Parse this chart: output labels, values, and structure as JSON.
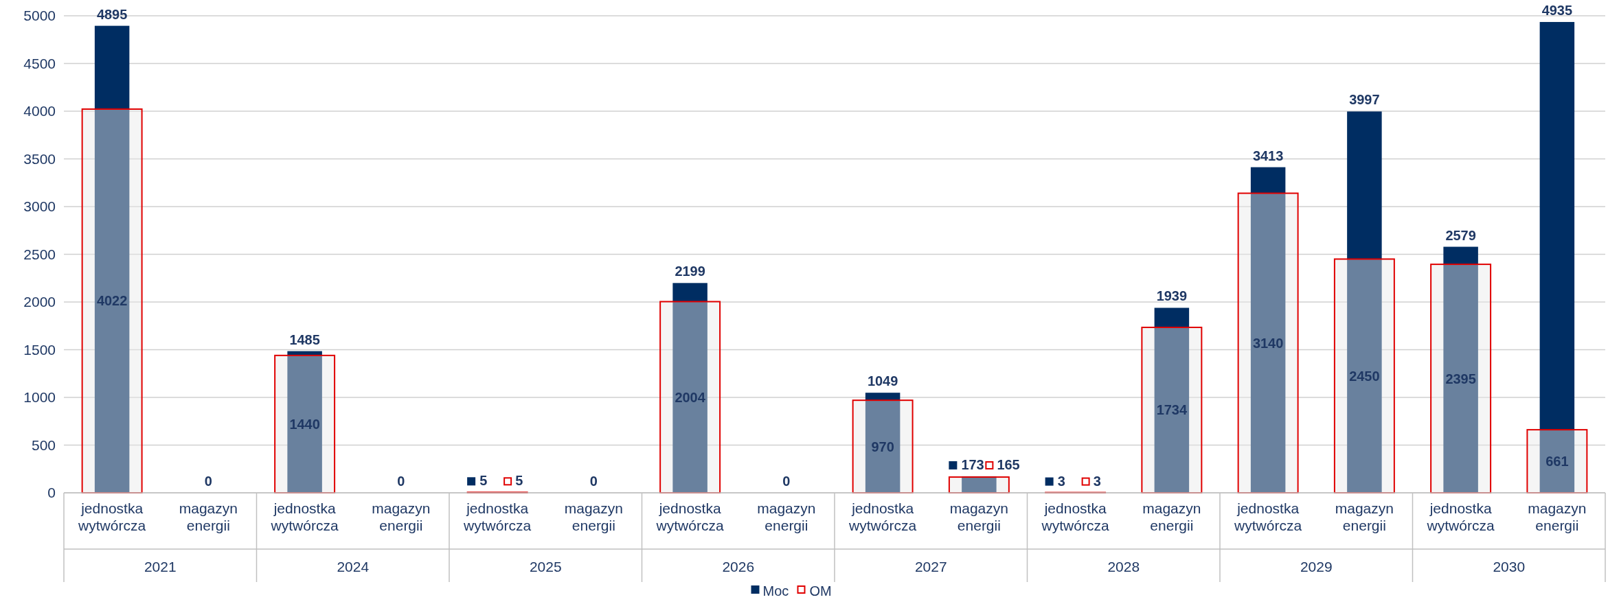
{
  "chart_data": {
    "type": "bar",
    "categories": [
      "jednostka wytwórcza",
      "magazyn energii",
      "jednostka wytwórcza",
      "magazyn energii",
      "jednostka wytwórcza",
      "magazyn energii",
      "jednostka wytwórcza",
      "magazyn energii",
      "jednostka wytwórcza",
      "magazyn energii",
      "jednostka wytwórcza",
      "magazyn energii",
      "jednostka wytwórcza",
      "magazyn energii",
      "jednostka wytwórcza",
      "magazyn energii"
    ],
    "series": [
      {
        "name": "Moc",
        "color": "#002d62",
        "values": [
          4895,
          0,
          1485,
          0,
          5,
          0,
          2199,
          0,
          1049,
          173,
          3,
          1939,
          3413,
          3997,
          2579,
          4935
        ]
      },
      {
        "name": "OM",
        "color": "#e00000",
        "values": [
          4022,
          null,
          1440,
          null,
          5,
          null,
          2004,
          null,
          970,
          165,
          3,
          1734,
          3140,
          2450,
          2395,
          661
        ]
      }
    ],
    "annotations": [
      "2021",
      "2024",
      "2025",
      "2026",
      "2027",
      "2028",
      "2029",
      "2030"
    ],
    "ylim": [
      0,
      5000
    ],
    "yticks": [
      0,
      500,
      1000,
      1500,
      2000,
      2500,
      3000,
      3500,
      4000,
      4500,
      5000
    ],
    "grid": "y",
    "legend": "bottom",
    "data_labels": true
  }
}
